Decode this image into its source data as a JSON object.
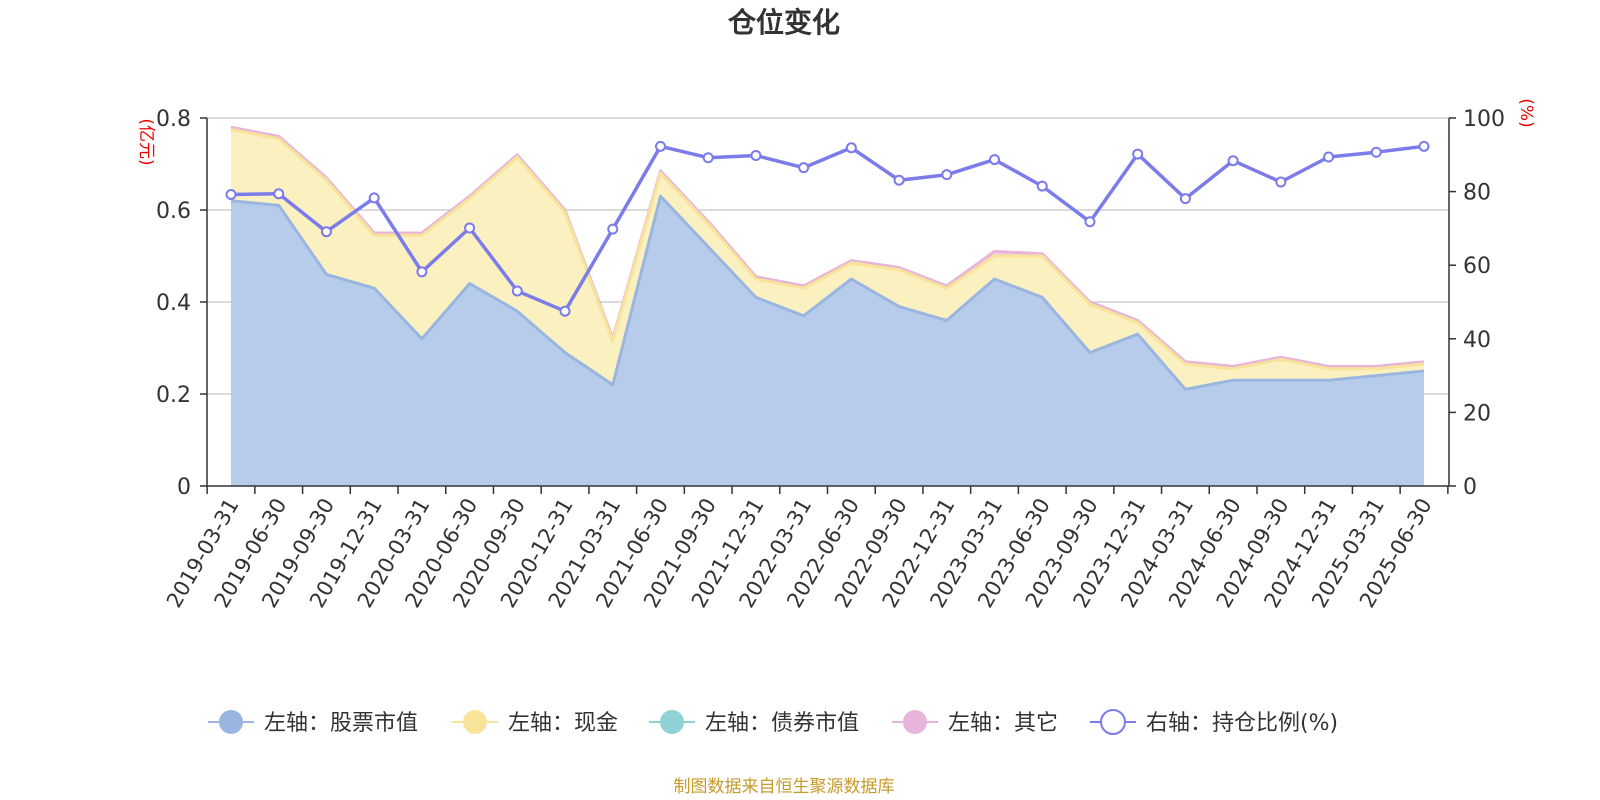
{
  "chart_data": {
    "type": "area",
    "title": "仓位变化",
    "left_axis": {
      "unit_label": "(亿元)",
      "ylim": [
        0,
        0.8
      ],
      "ticks": [
        "0",
        "0.2",
        "0.4",
        "0.6",
        "0.8"
      ],
      "tick_values": [
        0,
        0.2,
        0.4,
        0.6,
        0.8
      ]
    },
    "right_axis": {
      "unit_label": "(%)",
      "ylim": [
        0,
        100
      ],
      "ticks": [
        "0",
        "20",
        "40",
        "60",
        "80",
        "100"
      ],
      "tick_values": [
        0,
        20,
        40,
        60,
        80,
        100
      ]
    },
    "grid": true,
    "legend_position": "bottom",
    "categories": [
      "2019-03-31",
      "2019-06-30",
      "2019-09-30",
      "2019-12-31",
      "2020-03-31",
      "2020-06-30",
      "2020-09-30",
      "2020-12-31",
      "2021-03-31",
      "2021-06-30",
      "2021-09-30",
      "2021-12-31",
      "2022-03-31",
      "2022-06-30",
      "2022-09-30",
      "2022-12-31",
      "2023-03-31",
      "2023-06-30",
      "2023-09-30",
      "2023-12-31",
      "2024-03-31",
      "2024-06-30",
      "2024-09-30",
      "2024-12-31",
      "2025-03-31",
      "2025-06-30"
    ],
    "series": [
      {
        "name": "左轴：股票市值",
        "axis": "left",
        "stacked": true,
        "color": "#9ab6e0",
        "fill": "#b7cceb",
        "values": [
          0.62,
          0.61,
          0.46,
          0.43,
          0.32,
          0.44,
          0.38,
          0.29,
          0.22,
          0.63,
          0.52,
          0.41,
          0.37,
          0.45,
          0.39,
          0.36,
          0.45,
          0.41,
          0.29,
          0.33,
          0.21,
          0.23,
          0.23,
          0.23,
          0.24,
          0.25
        ]
      },
      {
        "name": "左轴：现金",
        "axis": "left",
        "stacked": true,
        "color": "#f7e49a",
        "fill": "#fbf0c0",
        "values": [
          0.155,
          0.145,
          0.205,
          0.115,
          0.225,
          0.185,
          0.335,
          0.305,
          0.095,
          0.05,
          0.05,
          0.04,
          0.06,
          0.035,
          0.08,
          0.07,
          0.05,
          0.09,
          0.105,
          0.025,
          0.055,
          0.025,
          0.045,
          0.025,
          0.015,
          0.015
        ]
      },
      {
        "name": "左轴：债券市值",
        "axis": "left",
        "stacked": true,
        "color": "#8fd1d4",
        "fill": "#a9dcdf",
        "values": [
          0,
          0,
          0,
          0,
          0,
          0,
          0,
          0,
          0,
          0,
          0,
          0,
          0,
          0,
          0,
          0,
          0,
          0,
          0,
          0,
          0,
          0,
          0,
          0,
          0,
          0
        ]
      },
      {
        "name": "左轴：其它",
        "axis": "left",
        "stacked": true,
        "color": "#e7b5d9",
        "fill": "#f0cde6",
        "values": [
          0.005,
          0.005,
          0.005,
          0.005,
          0.005,
          0.005,
          0.005,
          0.005,
          0.005,
          0.005,
          0.005,
          0.005,
          0.005,
          0.005,
          0.005,
          0.005,
          0.01,
          0.005,
          0.005,
          0.005,
          0.005,
          0.005,
          0.005,
          0.005,
          0.005,
          0.005
        ]
      },
      {
        "name": "右轴：持仓比例(%)",
        "axis": "right",
        "type": "line",
        "color": "#7b7be9",
        "values": [
          79.2,
          79.4,
          69.1,
          78.3,
          58.2,
          70.1,
          53.0,
          47.5,
          69.8,
          92.3,
          89.2,
          89.8,
          86.5,
          91.9,
          83.1,
          84.6,
          88.7,
          81.5,
          71.8,
          90.2,
          78.1,
          88.4,
          82.6,
          89.4,
          90.7,
          92.3
        ]
      }
    ]
  },
  "source_note": "制图数据来自恒生聚源数据库"
}
